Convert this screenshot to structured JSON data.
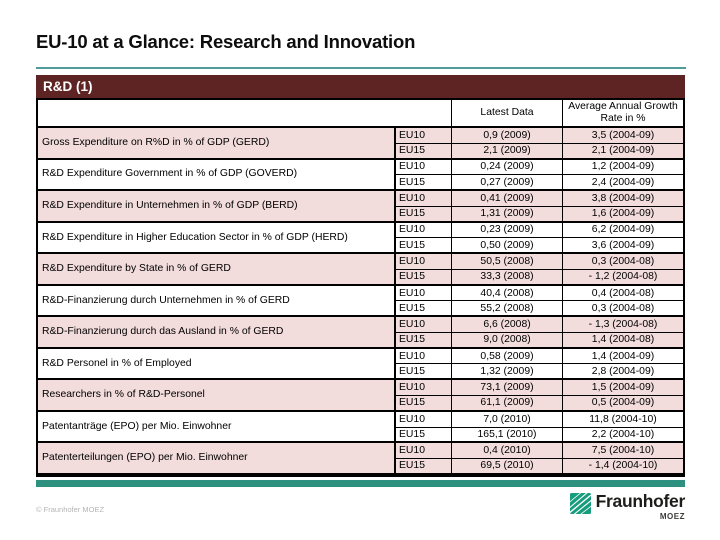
{
  "slide": {
    "title": "EU-10 at a Glance: Research and Innovation",
    "section_header": "R&D (1)",
    "copyright": "© Fraunhofer MOEZ",
    "logo": {
      "brand": "Fraunhofer",
      "sub_brand": "MOEZ"
    }
  },
  "colors": {
    "section_bar_maroon": "#5e2424",
    "row_shade_pink": "#f2dcdc",
    "title_rule_teal": "#4e9b99",
    "bottom_bar_teal": "#2e9180",
    "logo_green": "#179c7d"
  },
  "table": {
    "col_headers": [
      "",
      "Latest Data",
      "Average Annual Growth Rate in %"
    ],
    "rows": [
      {
        "label": "Gross Expenditure on R%D in % of GDP (GERD)",
        "shaded": true,
        "entries": [
          {
            "region": "EU10",
            "latest": "0,9 (2009)",
            "growth": "3,5 (2004-09)"
          },
          {
            "region": "EU15",
            "latest": "2,1 (2009)",
            "growth": "2,1 (2004-09)"
          }
        ]
      },
      {
        "label": "R&D Expenditure Government in % of GDP (GOVERD)",
        "shaded": false,
        "entries": [
          {
            "region": "EU10",
            "latest": "0,24 (2009)",
            "growth": "1,2 (2004-09)"
          },
          {
            "region": "EU15",
            "latest": "0,27 (2009)",
            "growth": "2,4 (2004-09)"
          }
        ]
      },
      {
        "label": "R&D Expenditure in Unternehmen in % of GDP (BERD)",
        "shaded": true,
        "entries": [
          {
            "region": "EU10",
            "latest": "0,41 (2009)",
            "growth": "3,8 (2004-09)"
          },
          {
            "region": "EU15",
            "latest": "1,31 (2009)",
            "growth": "1,6 (2004-09)"
          }
        ]
      },
      {
        "label": "R&D Expenditure in Higher Education Sector in % of GDP (HERD)",
        "shaded": false,
        "entries": [
          {
            "region": "EU10",
            "latest": "0,23 (2009)",
            "growth": "6,2 (2004-09)"
          },
          {
            "region": "EU15",
            "latest": "0,50 (2009)",
            "growth": "3,6 (2004-09)"
          }
        ]
      },
      {
        "label": "R&D Expenditure by State in % of GERD",
        "shaded": true,
        "entries": [
          {
            "region": "EU10",
            "latest": "50,5 (2008)",
            "growth": "0,3 (2004-08)"
          },
          {
            "region": "EU15",
            "latest": "33,3 (2008)",
            "growth": "- 1,2 (2004-08)"
          }
        ]
      },
      {
        "label": "R&D-Finanzierung durch Unternehmen in % of GERD",
        "shaded": false,
        "entries": [
          {
            "region": "EU10",
            "latest": "40,4 (2008)",
            "growth": "0,4 (2004-08)"
          },
          {
            "region": "EU15",
            "latest": "55,2 (2008)",
            "growth": "0,3 (2004-08)"
          }
        ]
      },
      {
        "label": "R&D-Finanzierung durch das Ausland in % of GERD",
        "shaded": true,
        "entries": [
          {
            "region": "EU10",
            "latest": "6,6 (2008)",
            "growth": "- 1,3 (2004-08)"
          },
          {
            "region": "EU15",
            "latest": "9,0 (2008)",
            "growth": "1,4 (2004-08)"
          }
        ]
      },
      {
        "label": "R&D Personel in % of Employed",
        "shaded": false,
        "entries": [
          {
            "region": "EU10",
            "latest": "0,58 (2009)",
            "growth": "1,4 (2004-09)"
          },
          {
            "region": "EU15",
            "latest": "1,32 (2009)",
            "growth": "2,8 (2004-09)"
          }
        ]
      },
      {
        "label": "Researchers in % of R&D-Personel",
        "shaded": true,
        "entries": [
          {
            "region": "EU10",
            "latest": "73,1 (2009)",
            "growth": "1,5 (2004-09)"
          },
          {
            "region": "EU15",
            "latest": "61,1 (2009)",
            "growth": "0,5 (2004-09)"
          }
        ]
      },
      {
        "label": "Patentanträge (EPO) per Mio. Einwohner",
        "shaded": false,
        "entries": [
          {
            "region": "EU10",
            "latest": "7,0 (2010)",
            "growth": "11,8 (2004-10)"
          },
          {
            "region": "EU15",
            "latest": "165,1 (2010)",
            "growth": "2,2 (2004-10)"
          }
        ]
      },
      {
        "label": "Patenterteilungen (EPO) per Mio. Einwohner",
        "shaded": true,
        "entries": [
          {
            "region": "EU10",
            "latest": "0,4 (2010)",
            "growth": "7,5 (2004-10)"
          },
          {
            "region": "EU15",
            "latest": "69,5 (2010)",
            "growth": "- 1,4 (2004-10)"
          }
        ]
      }
    ]
  }
}
